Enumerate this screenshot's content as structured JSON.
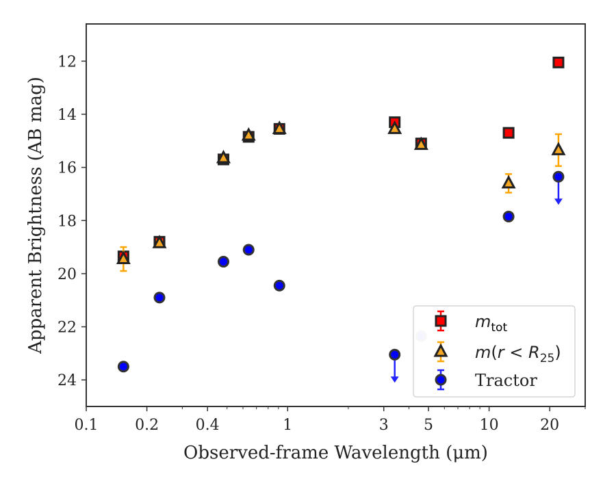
{
  "chart_data": {
    "type": "scatter",
    "xlabel": "Observed-frame Wavelength (μm)",
    "ylabel": "Apparent Brightness (AB mag)",
    "xscale": "log",
    "xlim": [
      0.1,
      30
    ],
    "ylim": [
      25,
      10.6
    ],
    "y_inverted": true,
    "xticks": [
      0.1,
      0.2,
      0.4,
      1,
      3,
      5,
      10,
      20
    ],
    "xtick_labels": [
      "0.1",
      "0.2",
      "0.4",
      "1",
      "3",
      "5",
      "10",
      "20"
    ],
    "yticks": [
      12,
      14,
      16,
      18,
      20,
      22,
      24
    ],
    "ytick_labels": [
      "12",
      "14",
      "16",
      "18",
      "20",
      "22",
      "24"
    ],
    "legend_position": "lower-right",
    "series": [
      {
        "name": "m_tot",
        "label_base": "m",
        "label_sub": "tot",
        "marker": "square",
        "color": "#ff0000",
        "edge_color": "#222222",
        "ecolor": "#ff0000",
        "points": [
          {
            "x": 0.153,
            "y": 19.35,
            "yerr": 0.15
          },
          {
            "x": 0.231,
            "y": 18.8,
            "yerr": 0.15
          },
          {
            "x": 0.48,
            "y": 15.7,
            "yerr": 0.1
          },
          {
            "x": 0.64,
            "y": 14.85,
            "yerr": 0.1
          },
          {
            "x": 0.91,
            "y": 14.55,
            "yerr": 0.1
          },
          {
            "x": 3.4,
            "y": 14.3,
            "yerr": 0.1
          },
          {
            "x": 4.6,
            "y": 15.1,
            "yerr": 0.1
          },
          {
            "x": 12.5,
            "y": 14.7,
            "yerr": 0.05
          },
          {
            "x": 22.1,
            "y": 12.05,
            "yerr": 0.05
          }
        ]
      },
      {
        "name": "m(r < R25)",
        "label_parts": [
          "m",
          "(r < ",
          "R",
          "25",
          ")"
        ],
        "marker": "triangle",
        "color": "#f5a623",
        "edge_color": "#222222",
        "ecolor": "#ffa500",
        "points": [
          {
            "x": 0.153,
            "y": 19.45,
            "yerr": 0.45
          },
          {
            "x": 0.231,
            "y": 18.85,
            "yerr": 0.1
          },
          {
            "x": 0.48,
            "y": 15.65,
            "yerr": 0.05
          },
          {
            "x": 0.64,
            "y": 14.8,
            "yerr": 0.05
          },
          {
            "x": 0.91,
            "y": 14.55,
            "yerr": 0.05
          },
          {
            "x": 3.4,
            "y": 14.55,
            "yerr": 0.05
          },
          {
            "x": 4.6,
            "y": 15.15,
            "yerr": 0.05
          },
          {
            "x": 12.5,
            "y": 16.6,
            "yerr": 0.35
          },
          {
            "x": 22.1,
            "y": 15.35,
            "yerr": 0.6
          }
        ]
      },
      {
        "name": "Tractor",
        "marker": "circle",
        "color": "#0000ff",
        "edge_color": "#333333",
        "ecolor": "#2222ff",
        "points": [
          {
            "x": 0.153,
            "y": 23.5
          },
          {
            "x": 0.231,
            "y": 20.9
          },
          {
            "x": 0.48,
            "y": 19.55
          },
          {
            "x": 0.64,
            "y": 19.1
          },
          {
            "x": 0.91,
            "y": 20.45
          },
          {
            "x": 3.4,
            "y": 23.05,
            "upper_limit": true
          },
          {
            "x": 4.6,
            "y": 22.35,
            "faded": true
          },
          {
            "x": 12.5,
            "y": 17.85
          },
          {
            "x": 22.1,
            "y": 16.35,
            "upper_limit": true
          }
        ]
      }
    ]
  }
}
